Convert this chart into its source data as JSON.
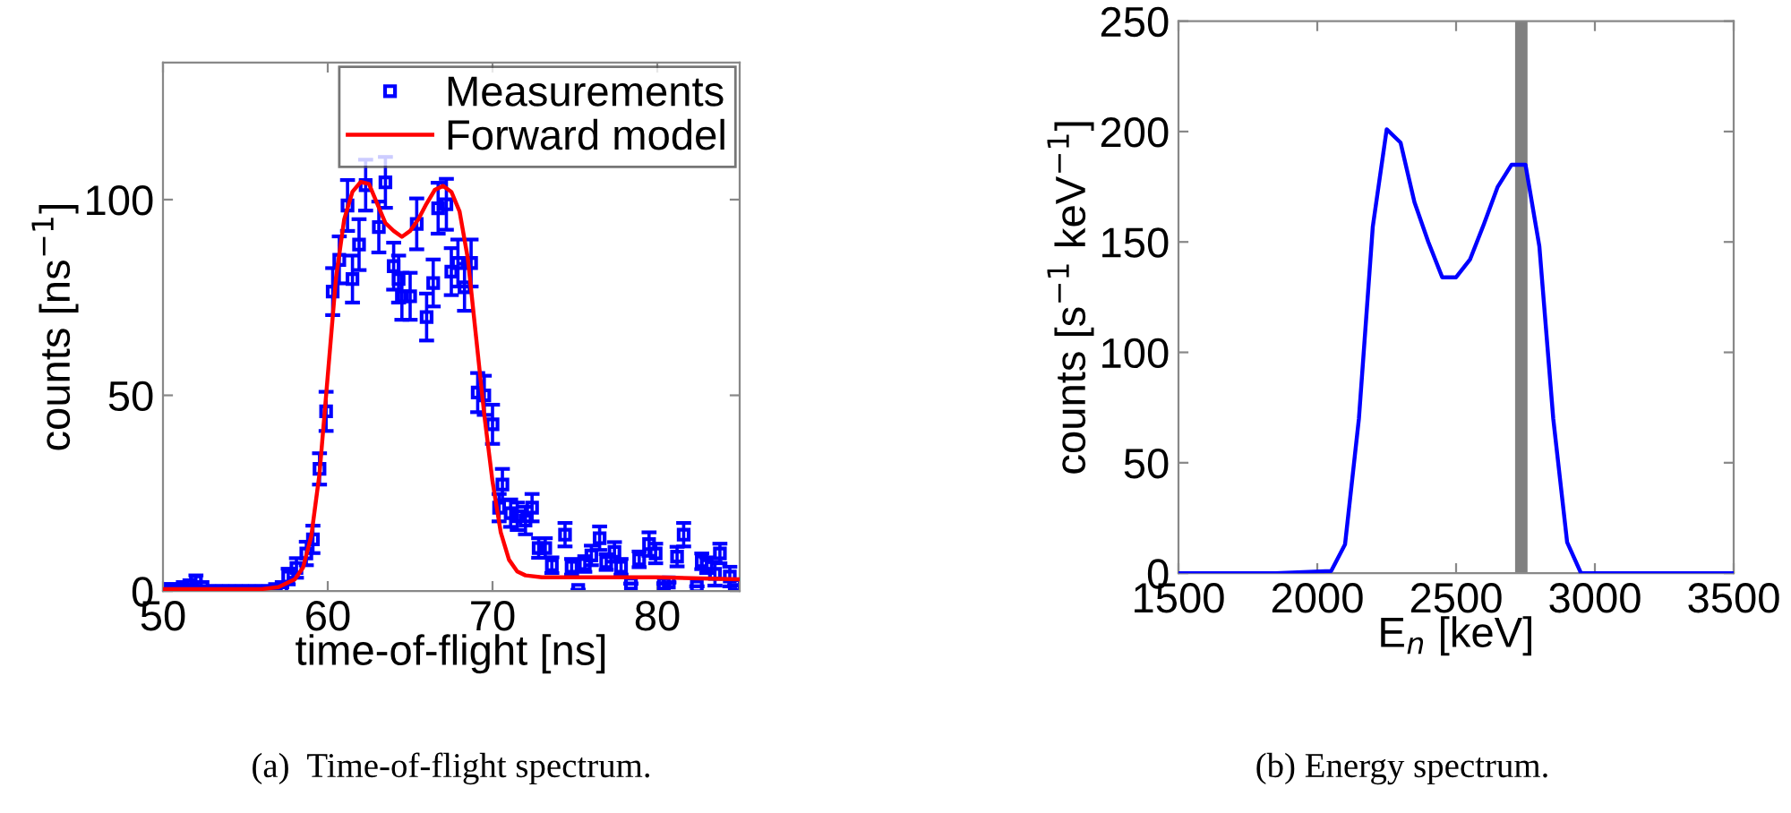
{
  "chart_data": [
    {
      "type": "scatter",
      "xlabel": "time-of-flight [ns]",
      "ylabel": "counts [ns$^{−1}$]",
      "xlim": [
        50,
        85
      ],
      "xticks": [
        50,
        60,
        70,
        80
      ],
      "ylim": [
        0,
        135
      ],
      "yticks": [
        0,
        50,
        100
      ],
      "legend": "top right",
      "grid": false,
      "annotations": [
        "(a)  Time-of-flight spectrum."
      ],
      "series": [
        {
          "name": "Measurements",
          "type": "scatter",
          "marker": "square",
          "color": "#0000ff",
          "x": [
            50.0,
            50.4,
            50.8,
            51.2,
            51.6,
            52.0,
            52.4,
            52.8,
            53.2,
            53.6,
            54.0,
            54.4,
            54.8,
            55.2,
            55.6,
            56.0,
            56.4,
            56.8,
            57.2,
            57.6,
            58.1,
            58.7,
            59.1,
            59.5,
            59.9,
            60.3,
            60.7,
            61.2,
            61.5,
            61.9,
            62.3,
            63.1,
            63.5,
            64.0,
            64.3,
            64.5,
            65.0,
            65.4,
            66.0,
            66.4,
            66.7,
            67.2,
            67.5,
            67.9,
            68.3,
            68.7,
            69.1,
            69.5,
            70.0,
            70.4,
            70.6,
            71.1,
            71.5,
            72.0,
            72.4,
            72.8,
            73.2,
            73.6,
            74.4,
            74.8,
            75.2,
            75.6,
            76.0,
            76.5,
            76.9,
            77.4,
            77.8,
            78.4,
            78.9,
            79.5,
            79.9,
            80.4,
            80.7,
            81.2,
            81.6,
            82.4,
            82.7,
            83.0,
            83.5,
            83.8,
            84.4,
            84.7
          ],
          "values": [
            0.5,
            0.5,
            0.5,
            1,
            1.5,
            2.5,
            1,
            0,
            0,
            0,
            0,
            0,
            0,
            0,
            0,
            0,
            0,
            0.5,
            1,
            3.7,
            5.9,
            9.6,
            13.2,
            31.2,
            45.9,
            76.5,
            84.6,
            98.5,
            79.7,
            88.5,
            103.7,
            93,
            104.4,
            83,
            79.7,
            75.3,
            75.3,
            93.8,
            70,
            78.7,
            97.8,
            98.8,
            81.6,
            83.8,
            77.6,
            83.8,
            50.7,
            50,
            42.6,
            21.3,
            27.2,
            19.9,
            19.1,
            18,
            21.3,
            11,
            11,
            6.6,
            14.4,
            6.2,
            0.3,
            6.9,
            9.1,
            13.5,
            7.4,
            10,
            6.2,
            1.9,
            8.1,
            12,
            9.6,
            1.9,
            2.2,
            8.8,
            14.4,
            1.2,
            7.6,
            6.6,
            4.4,
            9.6,
            3.7,
            1.5
          ],
          "errors": [
            null,
            null,
            null,
            null,
            null,
            1.5,
            null,
            null,
            null,
            null,
            null,
            null,
            null,
            null,
            null,
            null,
            null,
            null,
            null,
            2,
            2.5,
            3,
            3.5,
            4,
            5,
            6,
            6,
            6.5,
            6,
            6.5,
            6.5,
            6.5,
            6.5,
            6,
            6,
            6,
            6,
            6.5,
            6,
            6,
            6.5,
            6.5,
            6,
            6,
            6,
            6,
            5,
            5,
            5,
            3.5,
            4,
            3.5,
            3.5,
            3.5,
            3.5,
            2.5,
            2.5,
            2,
            3,
            2,
            null,
            2,
            2.5,
            3,
            2,
            2.5,
            2,
            null,
            2,
            3,
            2.5,
            null,
            null,
            2.5,
            3,
            null,
            2,
            2,
            3,
            2.5,
            2.5,
            null
          ]
        },
        {
          "name": "Forward model",
          "type": "line",
          "color": "#ff0000",
          "x": [
            50,
            56,
            57,
            58,
            58.5,
            59,
            59.5,
            60,
            60.5,
            61,
            61.5,
            62,
            62.5,
            63,
            63.5,
            64,
            64.5,
            65,
            65.5,
            66,
            66.5,
            67,
            67.5,
            68,
            68.5,
            69,
            69.5,
            70,
            70.5,
            71,
            71.5,
            72,
            73,
            75,
            80,
            85
          ],
          "values": [
            0.5,
            0.5,
            1,
            3,
            6,
            14,
            30,
            55,
            80,
            95,
            102,
            104.5,
            104,
            99,
            94,
            92,
            90.5,
            92,
            95,
            99,
            102.5,
            103.5,
            102,
            97,
            85,
            65,
            45,
            28,
            15,
            8,
            5,
            4,
            3.5,
            3.5,
            3.5,
            3
          ]
        }
      ]
    },
    {
      "type": "line",
      "xlabel": "E$_{n}$ [keV]",
      "ylabel": "counts [s$^{−1}$ keV$^{−1}$]",
      "xlim": [
        1500,
        3500
      ],
      "xticks": [
        1500,
        2000,
        2500,
        3000,
        3500
      ],
      "ylim": [
        0,
        250
      ],
      "yticks": [
        0,
        50,
        100,
        150,
        200,
        250
      ],
      "grid": false,
      "annotations": [
        "(b) Energy spectrum."
      ],
      "ref_lines": [
        {
          "axis": "x",
          "value": 2735,
          "color": "#808080"
        }
      ],
      "series": [
        {
          "color": "#0000ff",
          "x": [
            1500,
            1850,
            2050,
            2100,
            2150,
            2200,
            2250,
            2300,
            2350,
            2400,
            2450,
            2500,
            2550,
            2600,
            2650,
            2700,
            2750,
            2800,
            2850,
            2900,
            2950,
            3150,
            3500
          ],
          "values": [
            0,
            0,
            1,
            13,
            70,
            157,
            201,
            195,
            168,
            150,
            134,
            134,
            142,
            158,
            175,
            185,
            185,
            148,
            70,
            14,
            0,
            0,
            0
          ]
        }
      ]
    }
  ]
}
